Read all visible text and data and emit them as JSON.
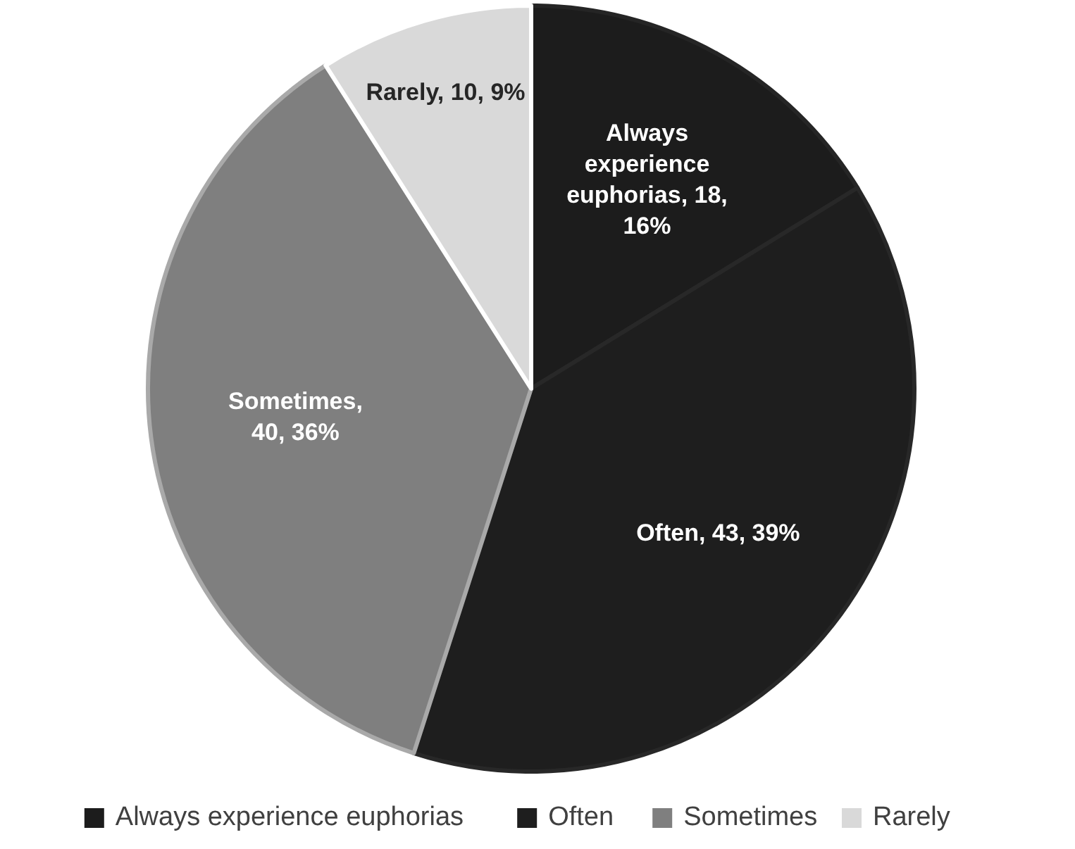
{
  "chart_data": {
    "type": "pie",
    "categories": [
      "Always experience euphorias",
      "Often",
      "Sometimes",
      "Rarely"
    ],
    "values": [
      18,
      43,
      40,
      10
    ],
    "colors": [
      "#1c1c1c",
      "#1e1e1e",
      "#7f7f7f",
      "#d9d9d9"
    ],
    "value_labels": [
      "Always experience euphorias, 18, 16%",
      "Often, 43, 39%",
      "Sometimes, 40, 36%",
      "Rarely, 10, 9%"
    ],
    "legend": "bottom"
  }
}
